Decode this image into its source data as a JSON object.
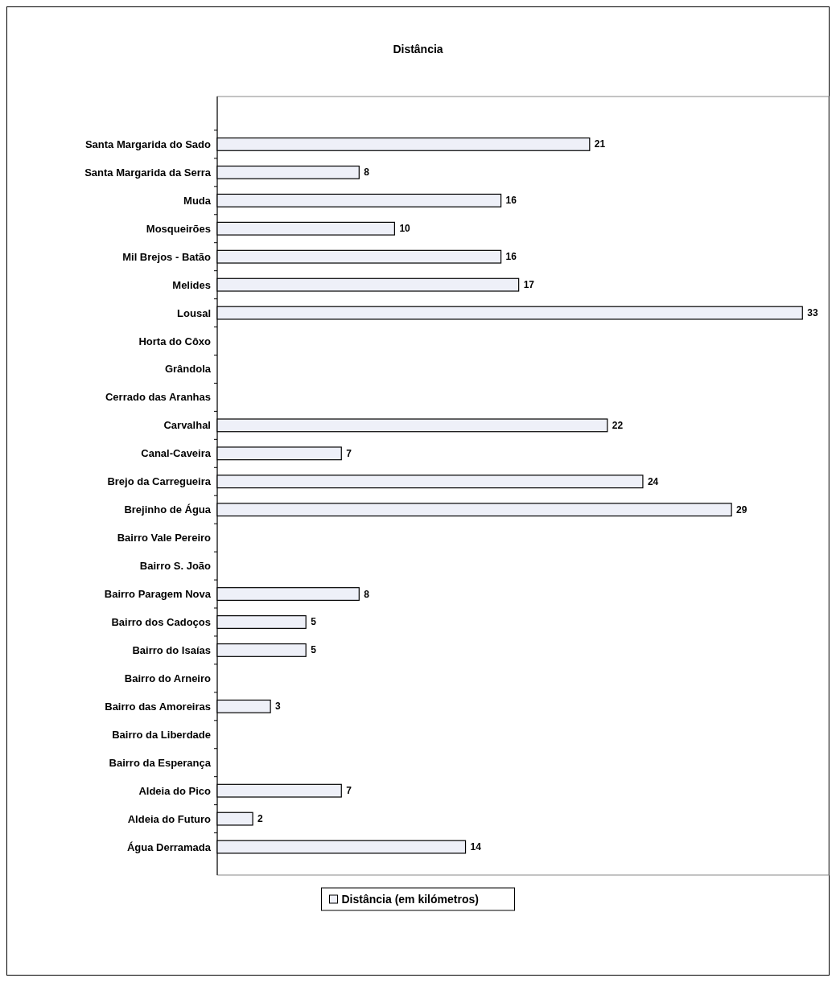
{
  "chart_data": {
    "type": "bar",
    "orientation": "horizontal",
    "title": "Distância",
    "categories": [
      "Santa Margarida do Sado",
      "Santa Margarida da Serra",
      "Muda",
      "Mosqueirões",
      "Mil Brejos - Batão",
      "Melides",
      "Lousal",
      "Horta do Côxo",
      "Grândola",
      "Cerrado das Aranhas",
      "Carvalhal",
      "Canal-Caveira",
      "Brejo da Carregueira",
      "Brejinho de Água",
      "Bairro Vale Pereiro",
      "Bairro S. João",
      "Bairro Paragem Nova",
      "Bairro dos Cadoços",
      "Bairro do Isaías",
      "Bairro do Arneiro",
      "Bairro das Amoreiras",
      "Bairro da Liberdade",
      "Bairro da Esperança",
      "Aldeia do Pico",
      "Aldeia do Futuro",
      "Água Derramada"
    ],
    "series": [
      {
        "name": "Distância (em kilómetros)",
        "color": "#eef0f8",
        "values": [
          21,
          8,
          16,
          10,
          16,
          17,
          33,
          null,
          null,
          null,
          22,
          7,
          24,
          29,
          null,
          null,
          8,
          5,
          5,
          null,
          3,
          null,
          null,
          7,
          2,
          14
        ]
      }
    ],
    "data_labels": true,
    "legend": "bottom",
    "grid": false
  }
}
